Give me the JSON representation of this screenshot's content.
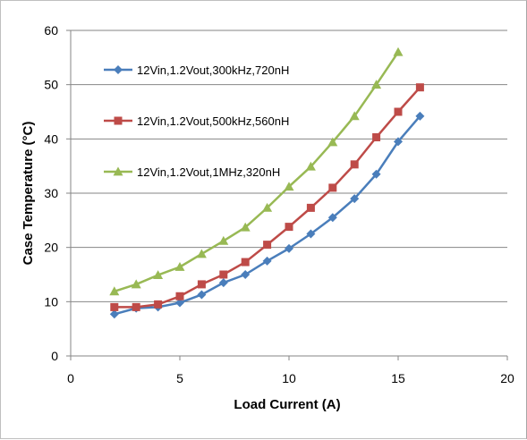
{
  "chart_data": {
    "type": "line",
    "xlabel": "Load Current (A)",
    "ylabel": "Case Temperature (°C)",
    "xlim": [
      0,
      20
    ],
    "ylim": [
      0,
      60
    ],
    "x_ticks": [
      0,
      5,
      10,
      15,
      20
    ],
    "y_ticks": [
      0,
      10,
      20,
      30,
      40,
      50,
      60
    ],
    "x_tick_labels": [
      "0",
      "5",
      "10",
      "15",
      "20"
    ],
    "y_tick_labels": [
      "0",
      "10",
      "20",
      "30",
      "40",
      "50",
      "60"
    ],
    "grid": "horizontal",
    "legend_position": "top-left",
    "series": [
      {
        "name": "12Vin,1.2Vout,300kHz,720nH",
        "color": "#4a7ebb",
        "marker": "diamond",
        "x": [
          2,
          3,
          4,
          5,
          6,
          7,
          8,
          9,
          10,
          11,
          12,
          13,
          14,
          15,
          16
        ],
        "y": [
          7.7,
          8.8,
          9.0,
          9.8,
          11.3,
          13.5,
          15.0,
          17.5,
          19.8,
          22.5,
          25.5,
          29.0,
          33.5,
          39.5,
          44.2
        ]
      },
      {
        "name": "12Vin,1.2Vout,500kHz,560nH",
        "color": "#be4b48",
        "marker": "square",
        "x": [
          2,
          3,
          4,
          5,
          6,
          7,
          8,
          9,
          10,
          11,
          12,
          13,
          14,
          15,
          16
        ],
        "y": [
          9.0,
          9.0,
          9.5,
          11.0,
          13.2,
          15.0,
          17.3,
          20.5,
          23.8,
          27.3,
          31.0,
          35.3,
          40.3,
          45.0,
          49.5
        ]
      },
      {
        "name": "12Vin,1.2Vout,1MHz,320nH",
        "color": "#98b954",
        "marker": "triangle",
        "x": [
          2,
          3,
          4,
          5,
          6,
          7,
          8,
          9,
          10,
          11,
          12,
          13,
          14,
          15
        ],
        "y": [
          11.9,
          13.2,
          14.9,
          16.4,
          18.8,
          21.2,
          23.7,
          27.3,
          31.2,
          34.9,
          39.4,
          44.2,
          50.0,
          56.0
        ]
      }
    ]
  }
}
